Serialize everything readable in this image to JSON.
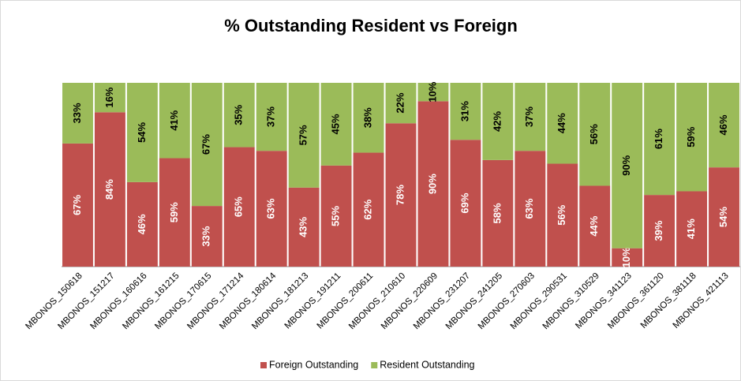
{
  "chart_data": {
    "type": "bar",
    "stacked": true,
    "title": "% Outstanding Resident vs Foreign",
    "categories": [
      "MBONOS_150618",
      "MBONOS_151217",
      "MBONOS_160616",
      "MBONOS_161215",
      "MBONOS_170615",
      "MBONOS_171214",
      "MBONOS_180614",
      "MBONOS_181213",
      "MBONOS_191211",
      "MBONOS_200611",
      "MBONOS_210610",
      "MBONOS_220609",
      "MBONOS_231207",
      "MBONOS_241205",
      "MBONOS_270603",
      "MBONOS_290531",
      "MBONOS_310529",
      "MBONOS_341123",
      "MBONOS_361120",
      "MBONOS_381118",
      "MBONOS_421113"
    ],
    "series": [
      {
        "name": "Foreign Outstanding",
        "color": "#c0504d",
        "values": [
          67,
          84,
          46,
          59,
          33,
          65,
          63,
          43,
          55,
          62,
          78,
          90,
          69,
          58,
          63,
          56,
          44,
          10,
          39,
          41,
          54
        ],
        "value_labels": [
          "67%",
          "84%",
          "46%",
          "59%",
          "33%",
          "65%",
          "63%",
          "43%",
          "55%",
          "62%",
          "78%",
          "90%",
          "69%",
          "58%",
          "63%",
          "56%",
          "44%",
          "10%",
          "39%",
          "41%",
          "54%"
        ]
      },
      {
        "name": "Resident Outstanding",
        "color": "#9bbb59",
        "values": [
          33,
          16,
          54,
          41,
          67,
          35,
          37,
          57,
          45,
          38,
          22,
          10,
          31,
          42,
          37,
          44,
          56,
          90,
          61,
          59,
          46
        ],
        "value_labels": [
          "33%",
          "16%",
          "54%",
          "41%",
          "67%",
          "35%",
          "37%",
          "57%",
          "45%",
          "38%",
          "22%",
          "10%",
          "31%",
          "42%",
          "37%",
          "44%",
          "56%",
          "90%",
          "61%",
          "59%",
          "46%"
        ]
      }
    ],
    "ylim": [
      0,
      100
    ],
    "legend": "bottom"
  }
}
